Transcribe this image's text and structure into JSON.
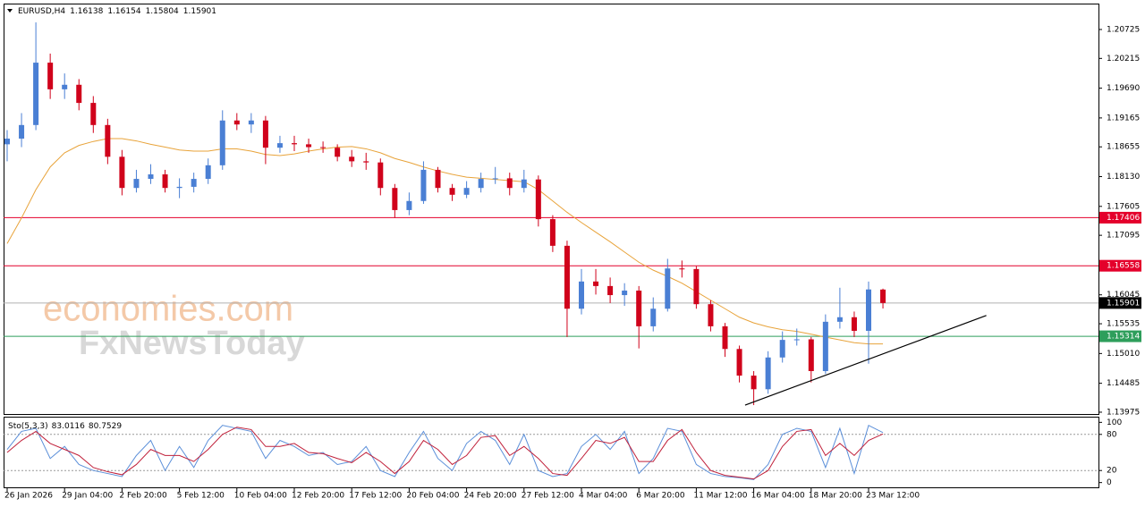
{
  "chart_data": [
    {
      "type": "candlestick",
      "title": "EURUSD,H4",
      "categories": [
        "26 Jan 2026",
        null,
        null,
        null,
        "29 Jan 04:00",
        null,
        null,
        null,
        "2 Feb 20:00",
        null,
        null,
        null,
        "5 Feb 12:00",
        null,
        null,
        null,
        "10 Feb 04:00",
        null,
        null,
        null,
        "12 Feb 20:00",
        null,
        null,
        null,
        "17 Feb 12:00",
        null,
        null,
        null,
        "20 Feb 04:00",
        null,
        null,
        null,
        "24 Feb 20:00",
        null,
        null,
        null,
        "27 Feb 12:00",
        null,
        null,
        null,
        "4 Mar 04:00",
        null,
        null,
        null,
        "6 Mar 20:00",
        null,
        null,
        null,
        "11 Mar 12:00",
        null,
        null,
        null,
        "16 Mar 04:00",
        null,
        null,
        null,
        "18 Mar 20:00",
        null,
        null,
        null,
        "23 Mar 12:00",
        null
      ],
      "open": [
        1.187,
        1.188,
        1.1904,
        1.2014,
        1.1967,
        1.1975,
        1.1943,
        1.1904,
        1.1848,
        1.1793,
        1.1809,
        1.1817,
        1.1793,
        1.1795,
        1.1809,
        1.1833,
        1.1912,
        1.1905,
        1.1912,
        1.1864,
        1.1872,
        1.187,
        1.1865,
        1.1864,
        1.1848,
        1.184,
        1.1838,
        1.1793,
        1.1754,
        1.177,
        1.1825,
        1.1793,
        1.1781,
        1.1793,
        1.1809,
        1.181,
        1.1793,
        1.1808,
        1.1738,
        1.1691,
        1.158,
        1.1628,
        1.162,
        1.1604,
        1.1612,
        1.1549,
        1.158,
        1.1651,
        1.165,
        1.1588,
        1.1549,
        1.1509,
        1.1462,
        1.1438,
        1.1494,
        1.1525,
        1.1526,
        1.147,
        1.1557,
        1.1565,
        1.1541,
        1.16138
      ],
      "high": [
        1.1895,
        1.1925,
        1.2085,
        1.203,
        1.1995,
        1.1985,
        1.1955,
        1.1915,
        1.186,
        1.1825,
        1.1835,
        1.1825,
        1.181,
        1.182,
        1.1845,
        1.193,
        1.1925,
        1.1925,
        1.192,
        1.1885,
        1.1885,
        1.188,
        1.1875,
        1.187,
        1.186,
        1.1855,
        1.1845,
        1.18,
        1.1785,
        1.184,
        1.183,
        1.18,
        1.1805,
        1.182,
        1.183,
        1.182,
        1.1825,
        1.1815,
        1.1745,
        1.17,
        1.165,
        1.165,
        1.1635,
        1.1625,
        1.162,
        1.16,
        1.1668,
        1.1665,
        1.1655,
        1.1595,
        1.1555,
        1.1515,
        1.147,
        1.1505,
        1.154,
        1.1545,
        1.153,
        1.157,
        1.1617,
        1.1575,
        1.1628,
        1.16154
      ],
      "low": [
        1.184,
        1.1865,
        1.1895,
        1.195,
        1.195,
        1.193,
        1.189,
        1.1835,
        1.178,
        1.1785,
        1.18,
        1.1785,
        1.1775,
        1.1785,
        1.18,
        1.1825,
        1.1895,
        1.189,
        1.1835,
        1.1855,
        1.1858,
        1.1855,
        1.1855,
        1.184,
        1.183,
        1.1825,
        1.178,
        1.174,
        1.1745,
        1.1765,
        1.1785,
        1.177,
        1.1775,
        1.1785,
        1.18,
        1.178,
        1.1785,
        1.1725,
        1.168,
        1.153,
        1.157,
        1.1605,
        1.159,
        1.1585,
        1.151,
        1.154,
        1.1575,
        1.1635,
        1.158,
        1.154,
        1.1495,
        1.145,
        1.141,
        1.143,
        1.1485,
        1.1515,
        1.145,
        1.1465,
        1.1545,
        1.153,
        1.1483,
        1.15804
      ],
      "close": [
        1.188,
        1.1904,
        1.2014,
        1.1967,
        1.1975,
        1.1943,
        1.1904,
        1.1848,
        1.1793,
        1.1809,
        1.1817,
        1.1793,
        1.1795,
        1.1809,
        1.1833,
        1.1912,
        1.1905,
        1.1912,
        1.1864,
        1.1872,
        1.187,
        1.1865,
        1.1864,
        1.1848,
        1.184,
        1.1838,
        1.1793,
        1.1754,
        1.177,
        1.1825,
        1.1793,
        1.1781,
        1.1793,
        1.1809,
        1.181,
        1.1793,
        1.1808,
        1.1738,
        1.1691,
        1.158,
        1.1628,
        1.162,
        1.1604,
        1.1612,
        1.1549,
        1.158,
        1.1651,
        1.165,
        1.1588,
        1.1549,
        1.1509,
        1.1462,
        1.1438,
        1.1494,
        1.1525,
        1.1526,
        1.147,
        1.1557,
        1.1565,
        1.1541,
        1.1614,
        1.15901
      ],
      "up_color": "#4a7fd4",
      "down_color": "#d0021b",
      "series": [
        {
          "color": "#e8a33a",
          "values": [
            1.1695,
            1.174,
            1.179,
            1.183,
            1.1855,
            1.1868,
            1.1875,
            1.188,
            1.188,
            1.1876,
            1.187,
            1.1865,
            1.186,
            1.1858,
            1.1858,
            1.1862,
            1.1862,
            1.1858,
            1.1852,
            1.185,
            1.1853,
            1.1858,
            1.1862,
            1.1865,
            1.1866,
            1.1862,
            1.1855,
            1.1845,
            1.1838,
            1.183,
            1.1823,
            1.1817,
            1.1812,
            1.181,
            1.1808,
            1.1806,
            1.1804,
            1.179,
            1.177,
            1.175,
            1.1732,
            1.1715,
            1.1698,
            1.168,
            1.1662,
            1.1648,
            1.1637,
            1.1625,
            1.161,
            1.1595,
            1.158,
            1.1565,
            1.1555,
            1.1548,
            1.1543,
            1.154,
            1.1535,
            1.153,
            1.1525,
            1.152,
            1.1518,
            1.1518
          ]
        }
      ],
      "levels": [
        {
          "value": 1.17406,
          "color": "#e4002b"
        },
        {
          "value": 1.16558,
          "color": "#e4002b"
        },
        {
          "value": 1.15314,
          "color": "#2e9e5b"
        }
      ],
      "trendline": {
        "x": [
          51.4,
          68.2
        ],
        "y": [
          1.141,
          1.1568
        ],
        "color": "#000000"
      },
      "watermark": [
        "economies.com",
        "FxNewsToday"
      ],
      "ylim": [
        1.13943,
        1.21182
      ],
      "yticks": [
        1.20725,
        1.20215,
        {
          "value": 1.1969,
          "label": "1.19690"
        },
        1.19165,
        1.18655,
        {
          "value": 1.1813,
          "label": "1.18130"
        },
        1.17605,
        1.17095,
        1.16045,
        1.15535,
        {
          "value": 1.1501,
          "label": "1.15010"
        },
        1.14485,
        1.13975
      ]
    },
    {
      "type": "line",
      "title": "Sto(5,3,3)",
      "series": [
        {
          "color": "#5b8fd9",
          "values": [
            55,
            85,
            90,
            40,
            60,
            30,
            20,
            15,
            10,
            45,
            70,
            20,
            60,
            25,
            70,
            95,
            90,
            85,
            40,
            70,
            60,
            45,
            50,
            30,
            35,
            60,
            20,
            10,
            50,
            85,
            40,
            20,
            65,
            85,
            70,
            30,
            80,
            20,
            10,
            15,
            60,
            80,
            55,
            85,
            15,
            40,
            90,
            85,
            30,
            15,
            10,
            8,
            5,
            30,
            80,
            90,
            85,
            25,
            90,
            15,
            95,
            83.0116
          ]
        },
        {
          "color": "#c0203a",
          "values": [
            50,
            70,
            85,
            65,
            55,
            45,
            25,
            18,
            13,
            30,
            55,
            45,
            45,
            35,
            55,
            80,
            92,
            88,
            60,
            60,
            65,
            50,
            48,
            40,
            33,
            50,
            35,
            15,
            35,
            70,
            55,
            30,
            45,
            75,
            78,
            45,
            60,
            40,
            15,
            12,
            40,
            70,
            65,
            75,
            35,
            35,
            70,
            88,
            50,
            20,
            12,
            9,
            6,
            20,
            60,
            85,
            88,
            45,
            65,
            45,
            70,
            80.7529
          ]
        }
      ],
      "levels": [
        80,
        20
      ],
      "ylim": [
        -9.4,
        109.4
      ],
      "yticks": [
        100,
        80,
        20,
        0
      ]
    }
  ]
}
